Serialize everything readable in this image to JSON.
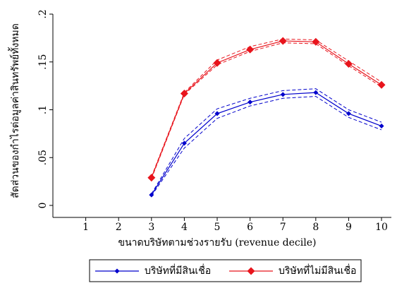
{
  "chart_data": {
    "type": "line",
    "y_label": "สัดส่วนของกำไรต่อมูลค่าสินทรัพย์ทั้งหมด",
    "x_label": "ขนาดบริษัทตามช่วงรายรับ (revenue decile)",
    "x": [
      3,
      4,
      5,
      6,
      7,
      8,
      9,
      10
    ],
    "xlim": [
      0,
      10.3
    ],
    "xticks": [
      1,
      2,
      3,
      4,
      5,
      6,
      7,
      8,
      9,
      10
    ],
    "ylim": [
      0,
      0.2
    ],
    "yticks": [
      {
        "value": 0,
        "label": "0"
      },
      {
        "value": 0.05,
        "label": ".05"
      },
      {
        "value": 0.1,
        "label": ".1"
      },
      {
        "value": 0.15,
        "label": ".15"
      },
      {
        "value": 0.2,
        "label": ".2"
      }
    ],
    "series": [
      {
        "name": "บริษัทที่มีสินเชื่อ",
        "color": "#0000cc",
        "marker_size": 3.5,
        "values": [
          0.011,
          0.065,
          0.096,
          0.108,
          0.116,
          0.118,
          0.096,
          0.083
        ],
        "ci_lower": [
          0.01,
          0.06,
          0.091,
          0.104,
          0.112,
          0.114,
          0.092,
          0.079
        ],
        "ci_upper": [
          0.012,
          0.07,
          0.101,
          0.112,
          0.12,
          0.122,
          0.1,
          0.087
        ]
      },
      {
        "name": "บริษัทที่ไม่มีสินเชื่อ",
        "color": "#e8141c",
        "marker_size": 5.5,
        "values": [
          0.029,
          0.117,
          0.149,
          0.163,
          0.172,
          0.171,
          0.148,
          0.126
        ],
        "ci_lower": [
          0.028,
          0.116,
          0.147,
          0.161,
          0.17,
          0.169,
          0.146,
          0.124
        ],
        "ci_upper": [
          0.03,
          0.118,
          0.152,
          0.166,
          0.174,
          0.173,
          0.151,
          0.129
        ]
      }
    ]
  }
}
